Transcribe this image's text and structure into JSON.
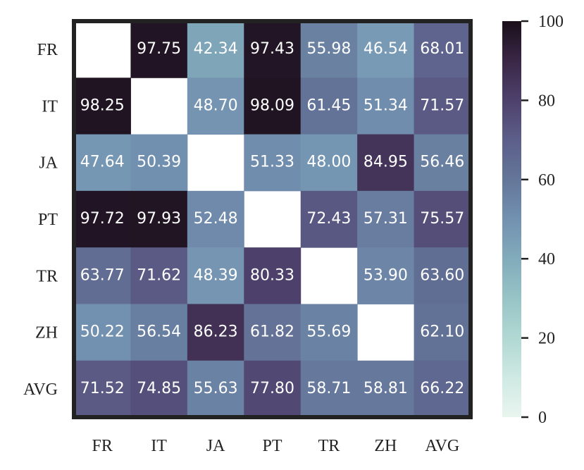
{
  "chart_data": {
    "type": "heatmap",
    "x_categories": [
      "FR",
      "IT",
      "JA",
      "PT",
      "TR",
      "ZH",
      "AVG"
    ],
    "y_categories": [
      "FR",
      "IT",
      "JA",
      "PT",
      "TR",
      "ZH",
      "AVG"
    ],
    "values": [
      [
        null,
        97.75,
        42.34,
        97.43,
        55.98,
        46.54,
        68.01
      ],
      [
        98.25,
        null,
        48.7,
        98.09,
        61.45,
        51.34,
        71.57
      ],
      [
        47.64,
        50.39,
        null,
        51.33,
        48.0,
        84.95,
        56.46
      ],
      [
        97.72,
        97.93,
        52.48,
        null,
        72.43,
        57.31,
        75.57
      ],
      [
        63.77,
        71.62,
        48.39,
        80.33,
        null,
        53.9,
        63.6
      ],
      [
        50.22,
        56.54,
        86.23,
        61.82,
        55.69,
        null,
        62.1
      ],
      [
        71.52,
        74.85,
        55.63,
        77.8,
        58.71,
        58.81,
        66.22
      ]
    ],
    "value_labels": [
      [
        null,
        "97.75",
        "42.34",
        "97.43",
        "55.98",
        "46.54",
        "68.01"
      ],
      [
        "98.25",
        null,
        "48.70",
        "98.09",
        "61.45",
        "51.34",
        "71.57"
      ],
      [
        "47.64",
        "50.39",
        null,
        "51.33",
        "48.00",
        "84.95",
        "56.46"
      ],
      [
        "97.72",
        "97.93",
        "52.48",
        null,
        "72.43",
        "57.31",
        "75.57"
      ],
      [
        "63.77",
        "71.62",
        "48.39",
        "80.33",
        null,
        "53.90",
        "63.60"
      ],
      [
        "50.22",
        "56.54",
        "86.23",
        "61.82",
        "55.69",
        null,
        "62.10"
      ],
      [
        "71.52",
        "74.85",
        "55.63",
        "77.80",
        "58.71",
        "58.81",
        "66.22"
      ]
    ],
    "clim": [
      0,
      100
    ],
    "cticks": [
      0,
      20,
      40,
      60,
      80,
      100
    ],
    "colormap": [
      "#e9f5ef",
      "#cfe9e3",
      "#b1d8d3",
      "#97c4c6",
      "#82abbb",
      "#7291b0",
      "#647699",
      "#5c5f8a",
      "#4e416c",
      "#3a2746",
      "#1a0f1a"
    ],
    "label_color": "#ffffff"
  }
}
